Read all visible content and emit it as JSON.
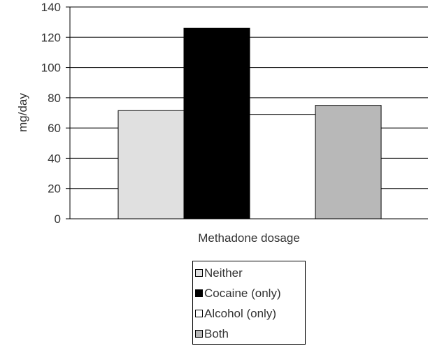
{
  "chart_data": {
    "type": "bar",
    "title": "",
    "xlabel": "Methadone dosage",
    "ylabel": "mg/day",
    "ylim": [
      0,
      140
    ],
    "yticks": [
      "0",
      "20",
      "40",
      "60",
      "80",
      "100",
      "120",
      "140"
    ],
    "grid": true,
    "legend_position": "bottom",
    "categories": [
      "Methadone dosage"
    ],
    "series": [
      {
        "name": "Neither",
        "values": [
          71.5
        ],
        "color": "#e0e0e0"
      },
      {
        "name": "Cocaine (only)",
        "values": [
          126
        ],
        "color": "#000000"
      },
      {
        "name": "Alcohol (only)",
        "values": [
          69
        ],
        "color": "#ffffff"
      },
      {
        "name": "Both",
        "values": [
          75
        ],
        "color": "#b8b8b8"
      }
    ]
  }
}
